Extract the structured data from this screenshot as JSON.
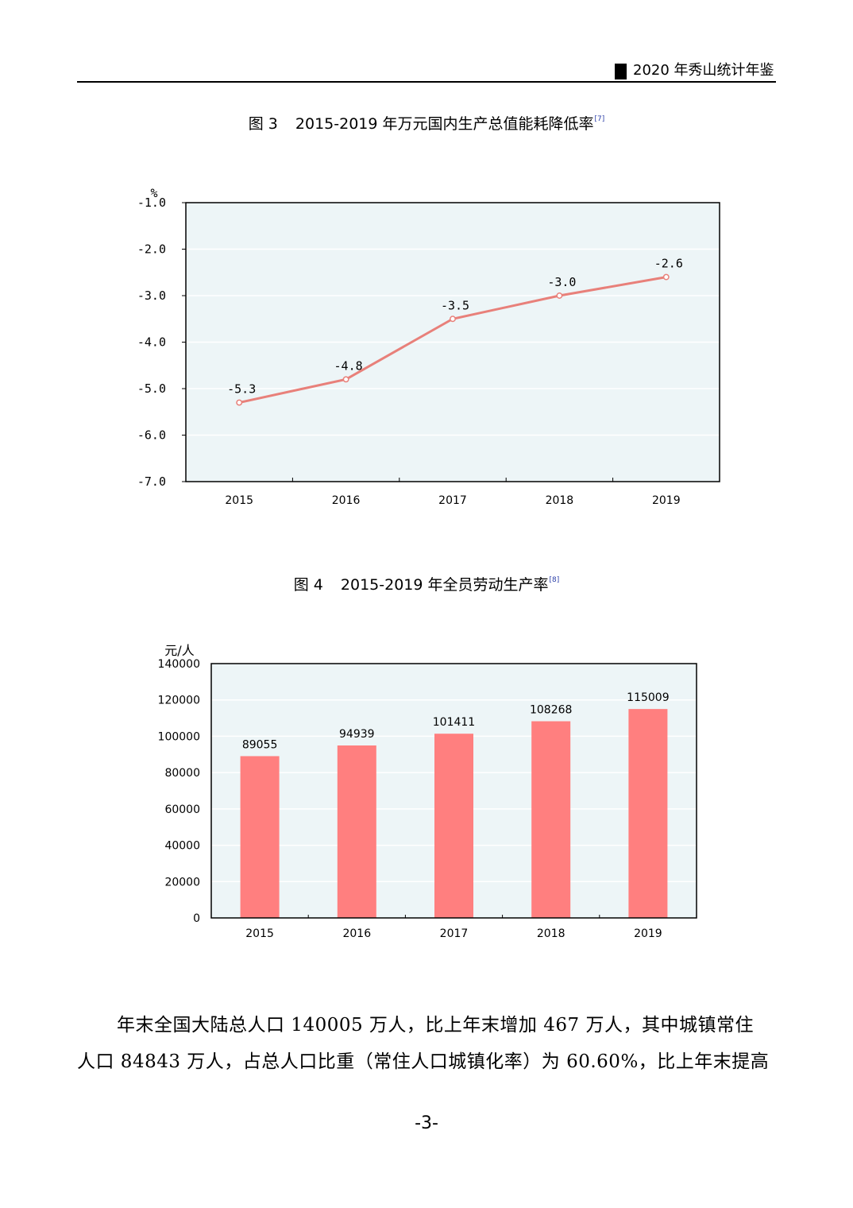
{
  "header": {
    "title": "2020 年秀山统计年鉴"
  },
  "figure3": {
    "label": "图 3",
    "title": "2015-2019 年万元国内生产总值能耗降低率",
    "note": "[7]"
  },
  "figure4": {
    "label": "图 4",
    "title": "2015-2019 年全员劳动生产率",
    "note": "[8]"
  },
  "chart_data": [
    {
      "type": "line",
      "title": "2015-2019 年万元国内生产总值能耗降低率",
      "ylabel": "%",
      "categories": [
        "2015",
        "2016",
        "2017",
        "2018",
        "2019"
      ],
      "values": [
        -5.3,
        -4.8,
        -3.5,
        -3.0,
        -2.6
      ],
      "data_labels": [
        "-5.3",
        "-4.8",
        "-3.5",
        "-3.0",
        "-2.6"
      ],
      "ylim": [
        -7.0,
        -1.0
      ],
      "yticks": [
        "-1.0",
        "-2.0",
        "-3.0",
        "-4.0",
        "-5.0",
        "-6.0",
        "-7.0"
      ],
      "grid": true,
      "line_color": "#e8807a",
      "plot_background": "#edf5f7"
    },
    {
      "type": "bar",
      "title": "2015-2019 年全员劳动生产率",
      "ylabel": "元/人",
      "categories": [
        "2015",
        "2016",
        "2017",
        "2018",
        "2019"
      ],
      "values": [
        89055,
        94939,
        101411,
        108268,
        115009
      ],
      "ylim": [
        0,
        140000
      ],
      "yticks": [
        "0",
        "20000",
        "40000",
        "60000",
        "80000",
        "100000",
        "120000",
        "140000"
      ],
      "grid": true,
      "bar_color": "#ff7f7f",
      "plot_background": "#edf5f7"
    }
  ],
  "body": {
    "line1": "年末全国大陆总人口 140005 万人，比上年末增加 467 万人，其中城镇常住",
    "line2": "人口 84843 万人，占总人口比重（常住人口城镇化率）为 60.60%，比上年末提高"
  },
  "page_number": "-3-"
}
